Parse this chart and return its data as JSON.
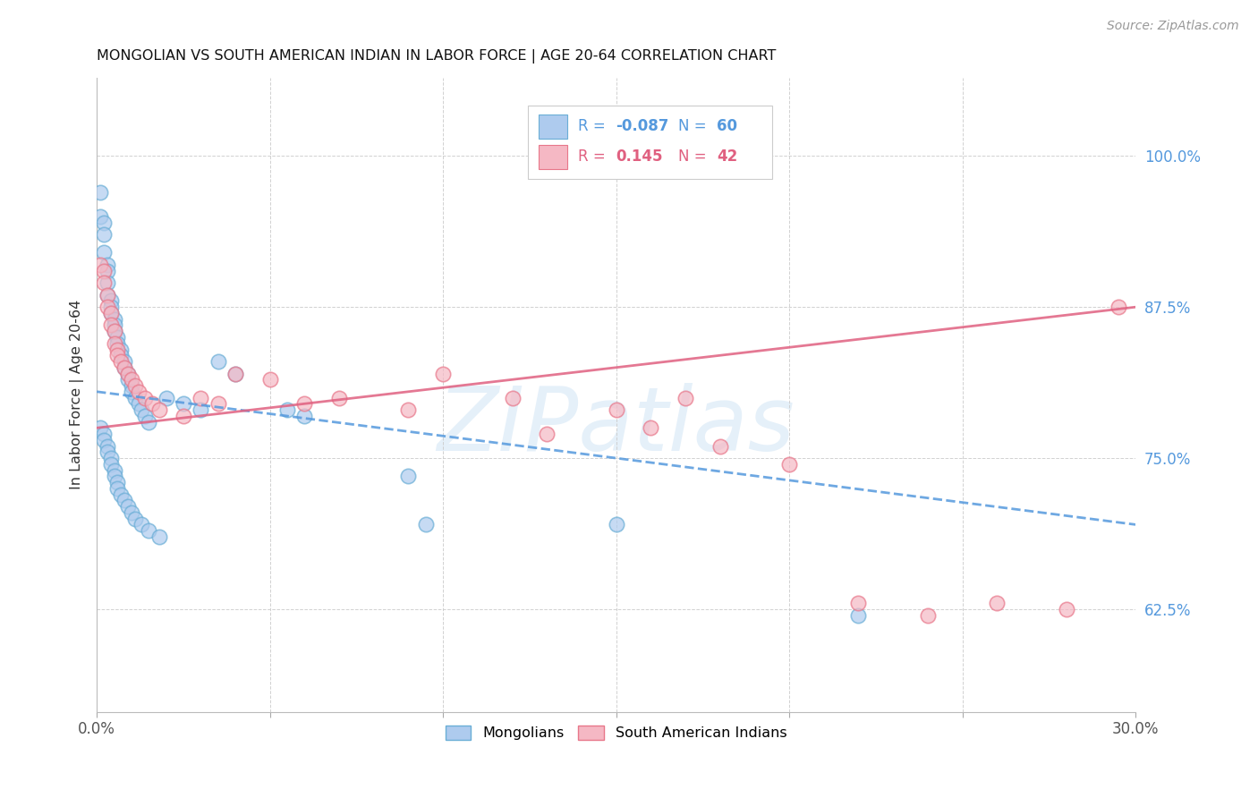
{
  "title": "MONGOLIAN VS SOUTH AMERICAN INDIAN IN LABOR FORCE | AGE 20-64 CORRELATION CHART",
  "source": "Source: ZipAtlas.com",
  "ylabel": "In Labor Force | Age 20-64",
  "xlim": [
    0.0,
    0.3
  ],
  "ylim": [
    0.54,
    1.065
  ],
  "xtick_labels_show": [
    "0.0%",
    "30.0%"
  ],
  "xtick_values_show": [
    0.0,
    0.3
  ],
  "xtick_grid_values": [
    0.0,
    0.05,
    0.1,
    0.15,
    0.2,
    0.25,
    0.3
  ],
  "ytick_labels_right": [
    "100.0%",
    "87.5%",
    "75.0%",
    "62.5%"
  ],
  "ytick_values_right": [
    1.0,
    0.875,
    0.75,
    0.625
  ],
  "mongolian_color": "#aecbee",
  "sai_color": "#f5b8c4",
  "mongolian_edge_color": "#6aaed6",
  "sai_edge_color": "#e8778a",
  "trend_blue_color": "#5599dd",
  "trend_pink_color": "#e06080",
  "watermark": "ZIPatlas",
  "legend_label_mongolians": "Mongolians",
  "legend_label_sai": "South American Indians",
  "trend_blue_x0": 0.0,
  "trend_blue_y0": 0.805,
  "trend_blue_x1": 0.3,
  "trend_blue_y1": 0.695,
  "trend_pink_x0": 0.0,
  "trend_pink_y0": 0.775,
  "trend_pink_x1": 0.3,
  "trend_pink_y1": 0.875
}
